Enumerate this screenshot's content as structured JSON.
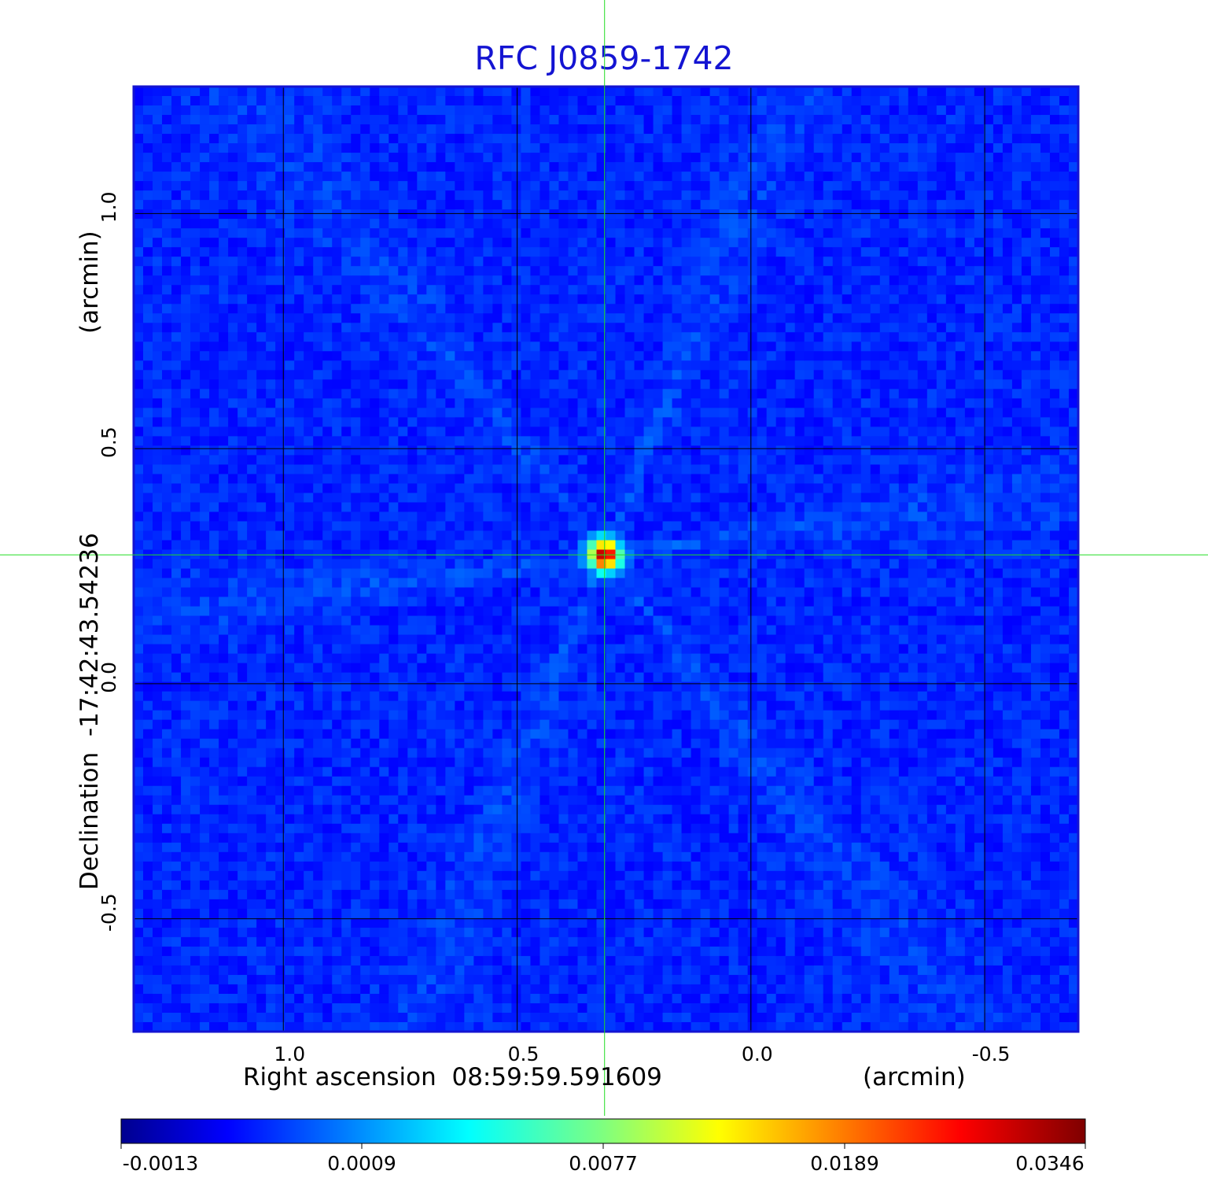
{
  "chart_data": {
    "type": "heatmap",
    "title": "RFC J0859-1742",
    "xlabel": "Right ascension  08:59:59.591609",
    "xunit": "(arcmin)",
    "ylabel": "Declination  -17:42:43.54236",
    "yunit": "(arcmin)",
    "x_ticks": [
      1.0,
      0.5,
      0.0,
      -0.5
    ],
    "x_tick_labels": [
      "1.0",
      "0.5",
      "0.0",
      "-0.5"
    ],
    "y_ticks": [
      1.0,
      0.5,
      0.0,
      -0.5
    ],
    "y_tick_labels": [
      "1.0",
      "0.5",
      "0.0",
      "-0.5"
    ],
    "xlim": [
      1.32,
      -0.7
    ],
    "ylim": [
      -0.74,
      1.27
    ],
    "x_reversed": true,
    "grid": true,
    "crosshair": {
      "x": 0.313,
      "y": 0.274
    },
    "source_peak": {
      "x": 0.31,
      "y": 0.27,
      "value": 0.0346
    },
    "colormap": "jet",
    "colorbar": {
      "ticks": [
        -0.0013,
        0.0009,
        0.0077,
        0.0189,
        0.0346
      ],
      "tick_labels": [
        "-0.0013",
        "0.0009",
        "0.0077",
        "0.0189",
        "0.0346"
      ],
      "range": [
        -0.0013,
        0.0346
      ]
    },
    "colors": {
      "title": "#1414d2",
      "frame": "#1414d2",
      "crosshair": "#22dd22",
      "grid": "#000000"
    }
  }
}
